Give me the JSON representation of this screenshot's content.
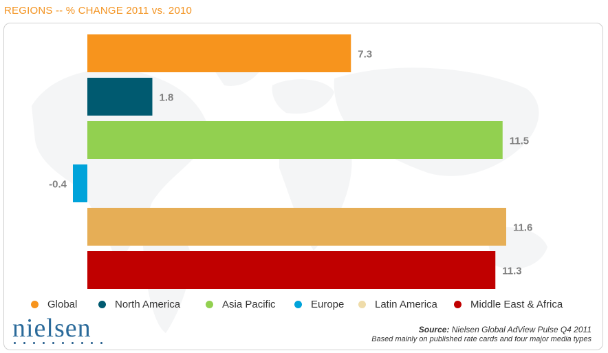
{
  "chart_data": {
    "type": "bar",
    "orientation": "horizontal",
    "title": "REGIONS -- % CHANGE 2011 vs. 2010",
    "categories": [
      "Global",
      "North America",
      "Asia Pacific",
      "Europe",
      "Latin America",
      "Middle East & Africa"
    ],
    "values": [
      7.3,
      1.8,
      11.5,
      -0.4,
      11.6,
      11.3
    ],
    "value_labels": [
      "7.3",
      "1.8",
      "11.5",
      "-0.4",
      "11.6",
      "11.3"
    ],
    "colors": [
      "#f7941d",
      "#005a70",
      "#92d050",
      "#00a3da",
      "#e6ae56",
      "#c00000"
    ],
    "xlim": [
      -0.4,
      11.6
    ],
    "legend": "bottom",
    "grid": false
  },
  "legend_dot_colors": [
    "#f7941d",
    "#005a70",
    "#92d050",
    "#00a3da",
    "#efdcaa",
    "#c00000"
  ],
  "source": {
    "label": "Source:",
    "text": " Nielsen Global AdView Pulse Q4 2011",
    "note": "Based mainly on published rate cards and four major media types"
  },
  "logo": {
    "text": "nielsen"
  }
}
